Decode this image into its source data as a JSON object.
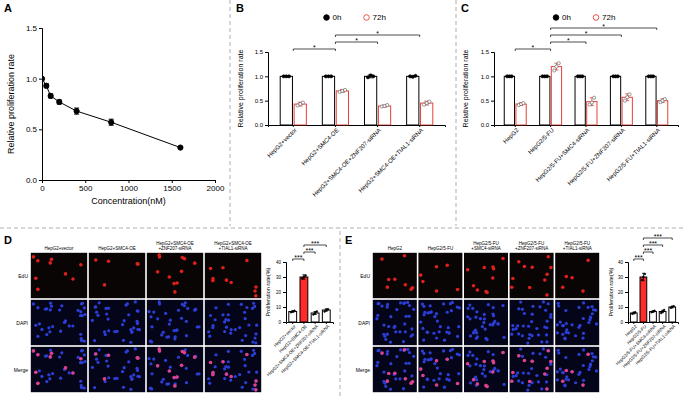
{
  "chart_data": [
    {
      "type": "line",
      "title": "A",
      "x_label": "Concentration(nM)",
      "y_label": "Relative proliferation rate",
      "x": [
        0,
        50,
        100,
        200,
        400,
        800,
        1600
      ],
      "values": [
        1.0,
        0.93,
        0.83,
        0.77,
        0.68,
        0.57,
        0.32
      ],
      "error": [
        0.01,
        0.02,
        0.02,
        0.02,
        0.03,
        0.03,
        0.01
      ],
      "color": "#000000",
      "marker": "filled-circle",
      "line_style": "solid",
      "xlim": [
        0,
        2000
      ],
      "xticks": [
        0,
        500,
        1000,
        1500,
        2000
      ],
      "ylim": [
        0,
        1.5
      ],
      "yticks": [
        {
          "value": 0,
          "label": "0.0"
        },
        {
          "value": 0.5,
          "label": "0.5"
        },
        {
          "value": 1,
          "label": "1.0"
        },
        {
          "value": 1.5,
          "label": "1.5"
        }
      ]
    },
    {
      "type": "bar",
      "title": "B",
      "y_label": "Relative proliferation rate",
      "legend": "top",
      "categories": [
        "HepG2+vector",
        "HepG2+SMC4-OE",
        "HepG2+SMC4-OE+ZNF207-siRNA",
        "HepG2+SMC4-OE+TIAL1-siRNA"
      ],
      "series": [
        {
          "name": "0h",
          "color": "#000000",
          "marker": "filled-circle",
          "values": [
            1.0,
            1.0,
            1.0,
            1.0
          ],
          "error": [
            0.01,
            0.01,
            0.03,
            0.01
          ],
          "points": [
            [
              1.0,
              1.0,
              1.0
            ],
            [
              1.0,
              1.0,
              1.0
            ],
            [
              0.98,
              1.02,
              1.0
            ],
            [
              1.0,
              0.99,
              1.01
            ]
          ]
        },
        {
          "name": "72h",
          "color": "#e8403a",
          "marker": "open-circle",
          "values": [
            0.43,
            0.7,
            0.39,
            0.45
          ],
          "error": [
            0.04,
            0.03,
            0.02,
            0.04
          ],
          "points": [
            [
              0.4,
              0.43,
              0.46
            ],
            [
              0.68,
              0.7,
              0.72
            ],
            [
              0.38,
              0.39,
              0.41
            ],
            [
              0.42,
              0.45,
              0.48
            ]
          ]
        }
      ],
      "significance": [
        {
          "from": 0,
          "to": 1,
          "label": "*"
        },
        {
          "from": 1,
          "to": 2,
          "label": "*"
        },
        {
          "from": 1,
          "to": 3,
          "label": "*"
        }
      ],
      "ylim": [
        0,
        1.5
      ],
      "yticks": [
        {
          "value": 0,
          "label": "0.0"
        },
        {
          "value": 0.5,
          "label": "0.5"
        },
        {
          "value": 1,
          "label": "1.0"
        },
        {
          "value": 1.5,
          "label": "1.5"
        }
      ]
    },
    {
      "type": "bar",
      "title": "C",
      "y_label": "Relative proliferation rate",
      "legend": "top",
      "categories": [
        "HepG2",
        "HepG2/5-FU",
        "HepG2/5-FU+SMC4-siRNA",
        "HepG2/5-FU+ZNF207-siRNA",
        "HepG2/5-FU+TIAL1-siRNA"
      ],
      "series": [
        {
          "name": "0h",
          "color": "#000000",
          "marker": "filled-circle",
          "values": [
            1.0,
            1.0,
            1.0,
            1.0,
            1.0
          ],
          "error": [
            0.01,
            0.01,
            0.01,
            0.01,
            0.01
          ],
          "points": [
            [
              1.0,
              1.0,
              1.0
            ],
            [
              1.0,
              1.0,
              1.0
            ],
            [
              1.0,
              1.0,
              1.0
            ],
            [
              1.0,
              1.0,
              1.0
            ],
            [
              1.0,
              1.0,
              1.0
            ]
          ]
        },
        {
          "name": "72h",
          "color": "#e8403a",
          "marker": "open-circle",
          "values": [
            0.43,
            1.2,
            0.48,
            0.57,
            0.5
          ],
          "error": [
            0.03,
            0.07,
            0.08,
            0.07,
            0.04
          ],
          "points": [
            [
              0.41,
              0.43,
              0.45
            ],
            [
              1.12,
              1.2,
              1.27
            ],
            [
              0.42,
              0.46,
              0.56
            ],
            [
              0.5,
              0.57,
              0.63
            ],
            [
              0.47,
              0.5,
              0.53
            ]
          ]
        }
      ],
      "significance": [
        {
          "from": 0,
          "to": 1,
          "label": "*"
        },
        {
          "from": 1,
          "to": 2,
          "label": "*"
        },
        {
          "from": 1,
          "to": 3,
          "label": "*"
        },
        {
          "from": 1,
          "to": 4,
          "label": "*"
        }
      ],
      "ylim": [
        0,
        1.5
      ],
      "yticks": [
        {
          "value": 0,
          "label": "0.0"
        },
        {
          "value": 0.5,
          "label": "0.5"
        },
        {
          "value": 1,
          "label": "1.0"
        },
        {
          "value": 1.5,
          "label": "1.5"
        }
      ]
    },
    {
      "type": "bar",
      "title": "D",
      "y_label": "Proliferation rate(%)",
      "marker": "filled-circle",
      "categories": [
        "HepG2+vector",
        "HepG2+SMC4-OE",
        "HepG2+SMC4-OE+ZNF207-siRNA",
        "HepG2+SMC4-OE+TIAL1-siRNA"
      ],
      "values": [
        7,
        30,
        6,
        8
      ],
      "error": [
        0.5,
        1.5,
        1.0,
        0.8
      ],
      "points": [
        [
          6.5,
          7,
          7.5
        ],
        [
          29,
          30,
          31
        ],
        [
          5,
          6,
          7
        ],
        [
          7,
          8,
          8.5
        ]
      ],
      "colors": [
        "#ffffff",
        "#ff2a2a",
        "#ffffff",
        "#ffffff"
      ],
      "significance": [
        {
          "from": 0,
          "to": 1,
          "label": "***"
        },
        {
          "from": 1,
          "to": 2,
          "label": "***"
        },
        {
          "from": 1,
          "to": 3,
          "label": "***"
        }
      ],
      "ylim": [
        0,
        40
      ],
      "yticks": [
        0,
        10,
        20,
        30,
        40
      ]
    },
    {
      "type": "bar",
      "title": "E",
      "y_label": "Proliferation rate(%)",
      "marker": "filled-circle",
      "categories": [
        "HepG2",
        "HepG2/5-FU",
        "HepG2/5-FU+SMC4-siRNA",
        "HepG2/5-FU+ZNF207-siRNA",
        "HepG2/5-FU+TIAL1-siRNA"
      ],
      "values": [
        6,
        30,
        7,
        7,
        10
      ],
      "error": [
        0.6,
        2.5,
        0.5,
        0.8,
        0.6
      ],
      "points": [
        [
          5.5,
          6,
          6.5
        ],
        [
          28,
          30,
          32
        ],
        [
          6.5,
          7,
          7.5
        ],
        [
          6,
          7,
          8
        ],
        [
          9.5,
          10,
          10.5
        ]
      ],
      "colors": [
        "#ffffff",
        "#ff2a2a",
        "#ffffff",
        "#ffffff",
        "#ffffff"
      ],
      "significance": [
        {
          "from": 0,
          "to": 1,
          "label": "***"
        },
        {
          "from": 1,
          "to": 2,
          "label": "***"
        },
        {
          "from": 1,
          "to": 3,
          "label": "***"
        },
        {
          "from": 1,
          "to": 4,
          "label": "***"
        }
      ],
      "ylim": [
        0,
        40
      ],
      "yticks": [
        0,
        10,
        20,
        30,
        40
      ]
    }
  ],
  "micrographs": [
    {
      "columns": [
        "HepG2+vector",
        "HepG2+SMC4-OE",
        "HepG2+SMC4-OE+ZNF207-siRNA",
        "HepG2+SMC4-OE+TIAL1-siRNA"
      ],
      "rows": [
        "EdU",
        "DAPI",
        "Merge"
      ]
    },
    {
      "columns": [
        "HepG2",
        "HepG2/5-FU",
        "HepG2/5-FU+SMC4-siRNA",
        "HepG2/5-FU+ZNF207-siRNA",
        "HepG2/5-FU+TIAL1-siRNA"
      ],
      "rows": [
        "EdU",
        "DAPI",
        "Merge"
      ]
    }
  ]
}
